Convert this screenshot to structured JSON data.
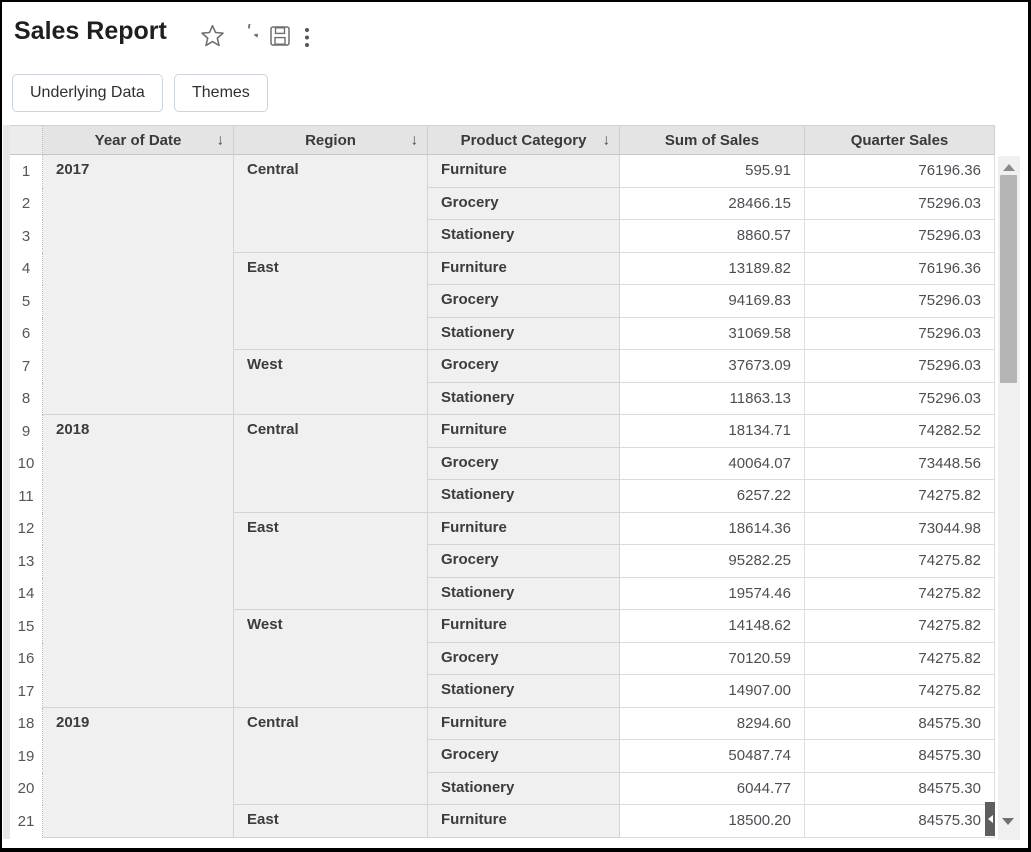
{
  "header": {
    "title": "Sales Report",
    "icons": [
      "favorite-star-icon",
      "refresh-icon",
      "save-icon",
      "more-options-icon"
    ]
  },
  "toolbar": {
    "underlying_data_label": "Underlying Data",
    "themes_label": "Themes"
  },
  "table": {
    "sort_arrow": "↓",
    "columns": [
      {
        "label": "Year of Date",
        "sortable": true
      },
      {
        "label": "Region",
        "sortable": true
      },
      {
        "label": "Product Category",
        "sortable": true
      },
      {
        "label": "Sum of Sales",
        "sortable": false
      },
      {
        "label": "Quarter Sales",
        "sortable": false
      }
    ],
    "rows": [
      {
        "n": 1,
        "year": "2017",
        "year_span": 8,
        "region": "Central",
        "region_span": 3,
        "category": "Furniture",
        "sum": "595.91",
        "quarter": "76196.36"
      },
      {
        "n": 2,
        "category": "Grocery",
        "sum": "28466.15",
        "quarter": "75296.03"
      },
      {
        "n": 3,
        "category": "Stationery",
        "sum": "8860.57",
        "quarter": "75296.03"
      },
      {
        "n": 4,
        "region": "East",
        "region_span": 3,
        "category": "Furniture",
        "sum": "13189.82",
        "quarter": "76196.36"
      },
      {
        "n": 5,
        "category": "Grocery",
        "sum": "94169.83",
        "quarter": "75296.03"
      },
      {
        "n": 6,
        "category": "Stationery",
        "sum": "31069.58",
        "quarter": "75296.03"
      },
      {
        "n": 7,
        "region": "West",
        "region_span": 2,
        "category": "Grocery",
        "sum": "37673.09",
        "quarter": "75296.03"
      },
      {
        "n": 8,
        "category": "Stationery",
        "sum": "11863.13",
        "quarter": "75296.03"
      },
      {
        "n": 9,
        "year": "2018",
        "year_span": 9,
        "region": "Central",
        "region_span": 3,
        "category": "Furniture",
        "sum": "18134.71",
        "quarter": "74282.52"
      },
      {
        "n": 10,
        "category": "Grocery",
        "sum": "40064.07",
        "quarter": "73448.56"
      },
      {
        "n": 11,
        "category": "Stationery",
        "sum": "6257.22",
        "quarter": "74275.82"
      },
      {
        "n": 12,
        "region": "East",
        "region_span": 3,
        "category": "Furniture",
        "sum": "18614.36",
        "quarter": "73044.98"
      },
      {
        "n": 13,
        "category": "Grocery",
        "sum": "95282.25",
        "quarter": "74275.82"
      },
      {
        "n": 14,
        "category": "Stationery",
        "sum": "19574.46",
        "quarter": "74275.82"
      },
      {
        "n": 15,
        "region": "West",
        "region_span": 3,
        "category": "Furniture",
        "sum": "14148.62",
        "quarter": "74275.82"
      },
      {
        "n": 16,
        "category": "Grocery",
        "sum": "70120.59",
        "quarter": "74275.82"
      },
      {
        "n": 17,
        "category": "Stationery",
        "sum": "14907.00",
        "quarter": "74275.82"
      },
      {
        "n": 18,
        "year": "2019",
        "year_span": 4,
        "region": "Central",
        "region_span": 3,
        "category": "Furniture",
        "sum": "8294.60",
        "quarter": "84575.30"
      },
      {
        "n": 19,
        "category": "Grocery",
        "sum": "50487.74",
        "quarter": "84575.30"
      },
      {
        "n": 20,
        "category": "Stationery",
        "sum": "6044.77",
        "quarter": "84575.30"
      },
      {
        "n": 21,
        "region": "East",
        "region_span": 1,
        "category": "Furniture",
        "sum": "18500.20",
        "quarter": "84575.30"
      }
    ]
  },
  "colors": {
    "header_bg": "#e4e4e4",
    "dimension_cell_bg": "#f0f0f0",
    "button_border": "#ccd5df",
    "scroll_thumb": "#b4b4b4"
  }
}
